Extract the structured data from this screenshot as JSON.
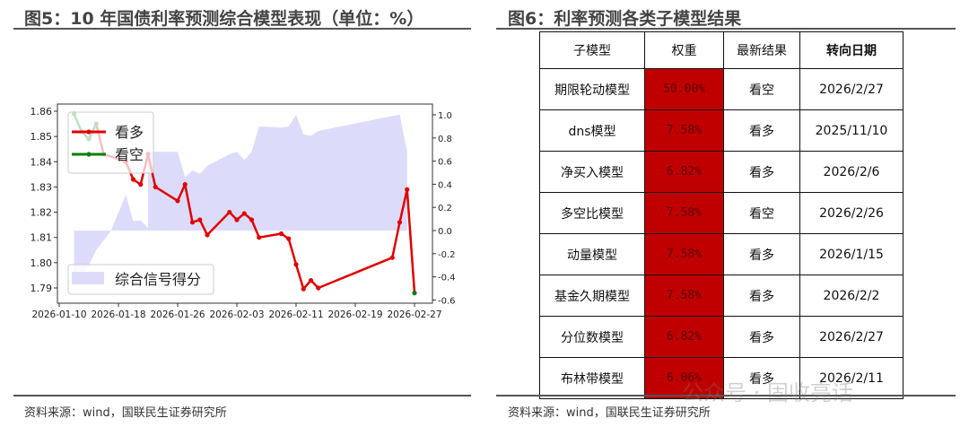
{
  "left": {
    "title": "图5：10 年国债利率预测综合模型表现（单位：%）",
    "source": "资料来源：wind，国联民生证券研究所"
  },
  "right": {
    "title": "图6：利率预测各类子模型结果",
    "source": "资料来源：wind，国联民生证券研究所",
    "headers": [
      "子模型",
      "权重",
      "最新结果",
      "转向日期"
    ],
    "rows": [
      [
        "期限轮动模型",
        "50.00%",
        "看空",
        "2026/2/27"
      ],
      [
        "dns模型",
        "7.58%",
        "看多",
        "2025/11/10"
      ],
      [
        "净买入模型",
        "6.82%",
        "看多",
        "2026/2/6"
      ],
      [
        "多空比模型",
        "7.58%",
        "看空",
        "2026/2/26"
      ],
      [
        "动量模型",
        "7.58%",
        "看多",
        "2026/1/15"
      ],
      [
        "基金久期模型",
        "7.58%",
        "看多",
        "2026/2/2"
      ],
      [
        "分位数模型",
        "6.82%",
        "看多",
        "2026/2/27"
      ],
      [
        "布林带模型",
        "6.06%",
        "看多",
        "2026/2/11"
      ]
    ],
    "weight_color": "#c00000"
  },
  "watermark": "公众号 · 固收亮话",
  "chart_data": {
    "type": "line",
    "title": "",
    "x_ticks": [
      "2026-01-10",
      "2026-01-18",
      "2026-01-26",
      "2026-02-03",
      "2026-02-11",
      "2026-02-19",
      "2026-02-27"
    ],
    "xlim": [
      "2026-01-10",
      "2026-02-27"
    ],
    "y_left": {
      "ticks": [
        1.86,
        1.85,
        1.84,
        1.83,
        1.82,
        1.81,
        1.8,
        1.79
      ],
      "ylim": [
        1.785,
        1.861
      ]
    },
    "y_right": {
      "ticks": [
        1.0,
        0.8,
        0.6,
        0.4,
        0.2,
        0.0,
        -0.2,
        -0.4,
        -0.6
      ],
      "ylim": [
        -0.62,
        1.05
      ]
    },
    "legend": {
      "placement": "upper-left and lower-left",
      "entries": [
        "看多",
        "看空",
        "综合信号得分"
      ]
    },
    "colors": {
      "看多": "#e00000",
      "看空": "#008000",
      "综合信号得分": "#dcdcfa"
    },
    "yield": {
      "x": [
        "2026-01-12",
        "2026-01-13",
        "2026-01-14",
        "2026-01-15",
        "2026-01-16",
        "2026-01-19",
        "2026-01-20",
        "2026-01-21",
        "2026-01-22",
        "2026-01-23",
        "2026-01-26",
        "2026-01-27",
        "2026-01-28",
        "2026-01-29",
        "2026-01-30",
        "2026-02-02",
        "2026-02-03",
        "2026-02-04",
        "2026-02-05",
        "2026-02-06",
        "2026-02-09",
        "2026-02-10",
        "2026-02-11",
        "2026-02-12",
        "2026-02-13",
        "2026-02-14",
        "2026-02-24",
        "2026-02-25",
        "2026-02-26",
        "2026-02-27"
      ],
      "y": [
        1.859,
        1.852,
        1.849,
        1.855,
        1.843,
        1.84,
        1.833,
        1.831,
        1.843,
        1.83,
        1.8245,
        1.831,
        1.816,
        1.817,
        1.811,
        1.82,
        1.817,
        1.8195,
        1.817,
        1.81,
        1.8115,
        1.8095,
        1.7993,
        1.7896,
        1.793,
        1.79,
        1.802,
        1.816,
        1.829,
        1.788
      ],
      "signal": [
        "看空",
        "看空",
        "看空",
        "看空",
        "看多",
        "看多",
        "看多",
        "看多",
        "看多",
        "看多",
        "看多",
        "看多",
        "看多",
        "看多",
        "看多",
        "看多",
        "看多",
        "看多",
        "看多",
        "看多",
        "看多",
        "看多",
        "看多",
        "看多",
        "看多",
        "看多",
        "看多",
        "看多",
        "看多",
        "看空"
      ]
    },
    "score": {
      "x": [
        "2026-01-12",
        "2026-01-13",
        "2026-01-14",
        "2026-01-15",
        "2026-01-17",
        "2026-01-19",
        "2026-01-20",
        "2026-01-21",
        "2026-01-22",
        "2026-01-22",
        "2026-01-26",
        "2026-01-27",
        "2026-01-28",
        "2026-01-29",
        "2026-01-30",
        "2026-02-02",
        "2026-02-03",
        "2026-02-04",
        "2026-02-05",
        "2026-02-06",
        "2026-02-09",
        "2026-02-10",
        "2026-02-11",
        "2026-02-12",
        "2026-02-13",
        "2026-02-14",
        "2026-02-24",
        "2026-02-25",
        "2026-02-26",
        "2026-02-26",
        "2026-02-27"
      ],
      "y": [
        -0.45,
        -0.4,
        -0.3,
        -0.17,
        0.0,
        0.31,
        0.08,
        0.09,
        0.02,
        0.68,
        0.68,
        0.46,
        0.52,
        0.49,
        0.56,
        0.66,
        0.68,
        0.61,
        0.68,
        0.9,
        0.89,
        0.9,
        1.0,
        0.83,
        0.82,
        0.86,
        0.99,
        1.0,
        0.68,
        0.0,
        0.0
      ]
    }
  }
}
